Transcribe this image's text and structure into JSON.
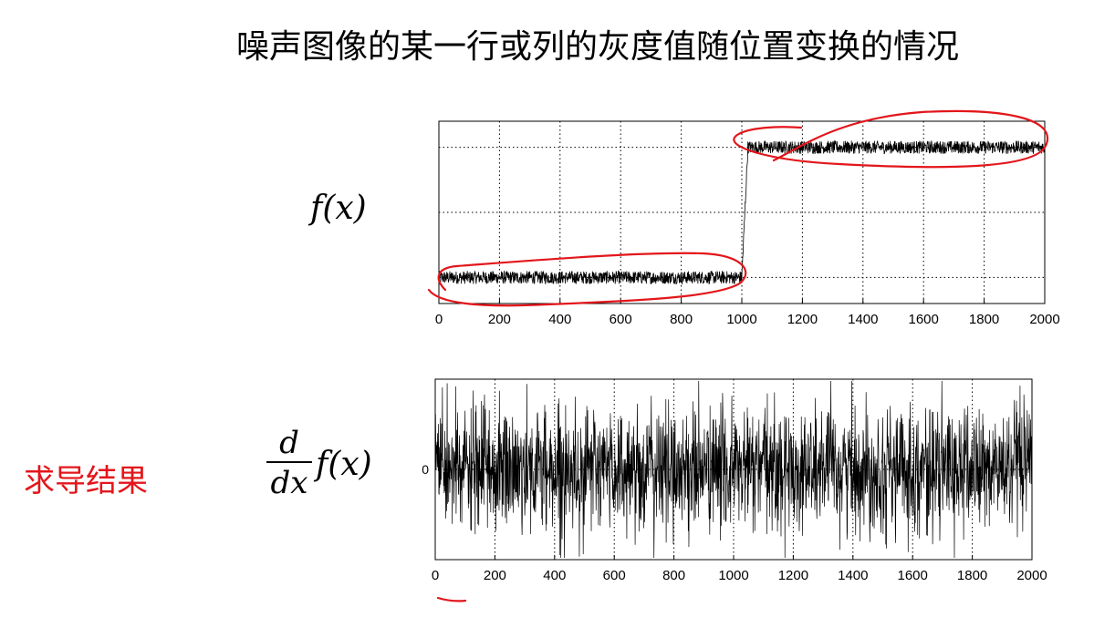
{
  "title": "噪声图像的某一行或列的灰度值随位置变换的情况",
  "top_label": "f(x)",
  "bottom_formula": {
    "numerator": "d",
    "denominator": "dx",
    "function": "f(x)"
  },
  "side_label": "求导结果",
  "colors": {
    "signal": "#000000",
    "annotation": "#e3161b",
    "grid": "#000000",
    "frame": "#000000"
  },
  "chart_data": [
    {
      "type": "line",
      "description_series": "noisy step signal",
      "x_range": [
        0,
        2000
      ],
      "x_ticks": [
        "0",
        "200",
        "400",
        "600",
        "800",
        "1000",
        "1200",
        "1400",
        "1600",
        "1800",
        "2000"
      ],
      "y_tick_labels": [],
      "step": {
        "x_start": 1000,
        "x_end": 1020,
        "low_level": 0.25,
        "high_level": 0.75,
        "noise_amplitude": 0.025
      },
      "ylim": [
        0.15,
        0.85
      ],
      "grid": true
    },
    {
      "type": "line",
      "x_range": [
        0,
        2000
      ],
      "x_ticks": [
        "0",
        "200",
        "400",
        "600",
        "800",
        "1000",
        "1200",
        "1400",
        "1600",
        "1800",
        "2000"
      ],
      "y_tick_labels": [
        "0"
      ],
      "mean": 0,
      "noise_amplitude": 0.9,
      "ylim": [
        -1,
        1
      ],
      "grid": true
    }
  ]
}
